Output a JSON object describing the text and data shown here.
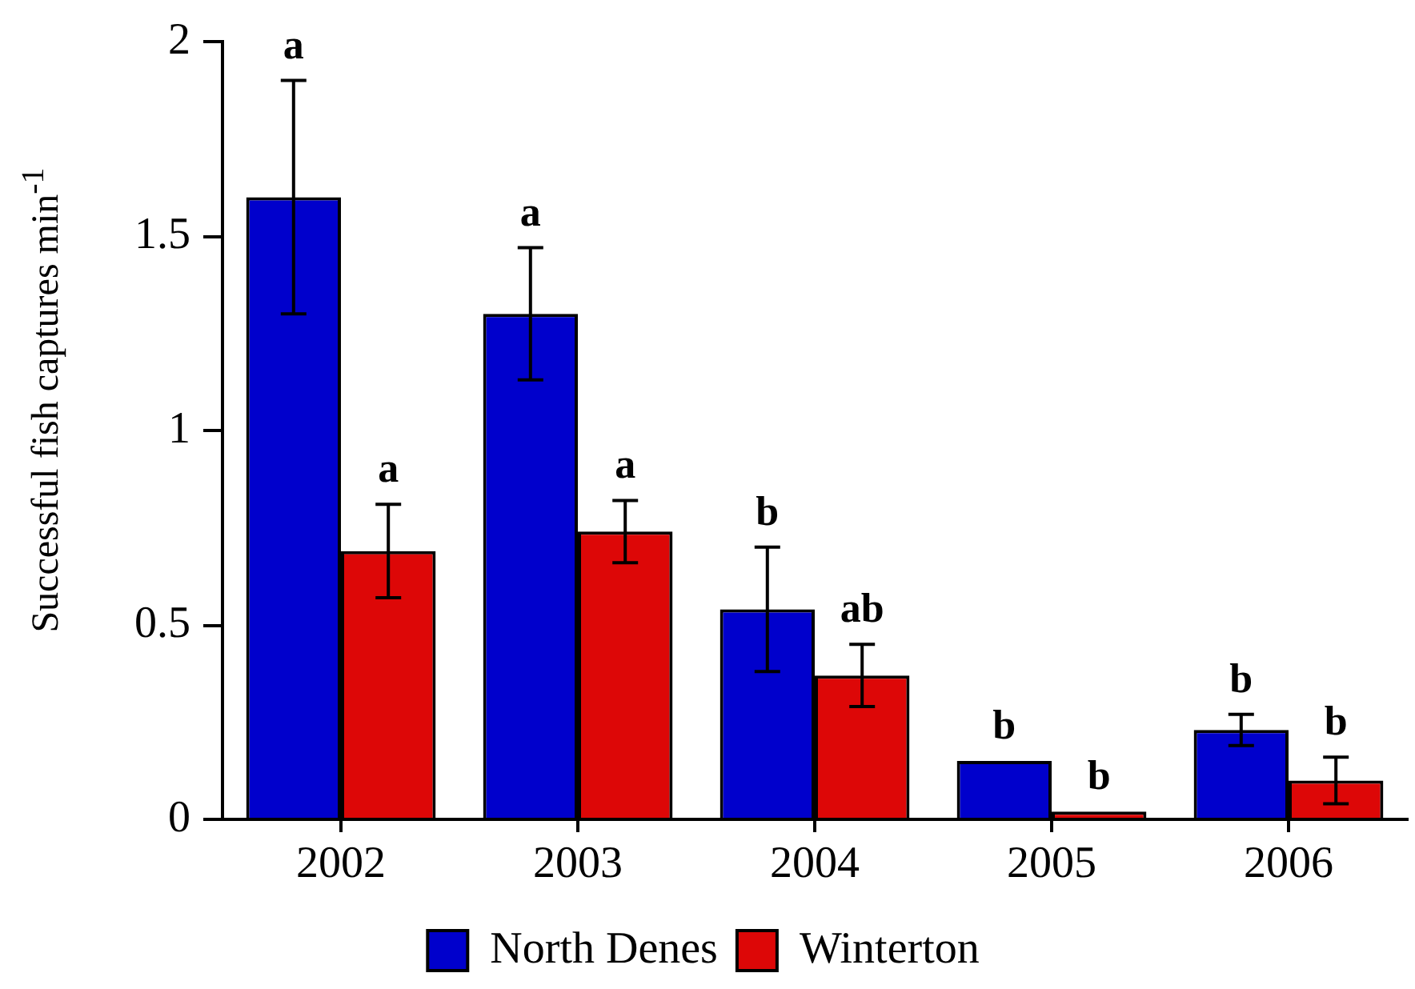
{
  "chart_data": {
    "type": "bar",
    "categories": [
      "2002",
      "2003",
      "2004",
      "2005",
      "2006"
    ],
    "series": [
      {
        "name": "North Denes",
        "color": "#0000cc",
        "values": [
          1.6,
          1.3,
          0.54,
          0.15,
          0.23
        ],
        "errors": [
          0.3,
          0.17,
          0.16,
          null,
          0.04
        ],
        "value_labels": [
          "a",
          "a",
          "b",
          "b",
          "b"
        ]
      },
      {
        "name": "Winterton",
        "color": "#dd0707",
        "values": [
          0.69,
          0.74,
          0.37,
          0.02,
          0.1
        ],
        "errors": [
          0.12,
          0.08,
          0.08,
          null,
          0.06
        ],
        "value_labels": [
          "a",
          "a",
          "ab",
          "b",
          "b"
        ]
      }
    ],
    "ylabel": "Successful fish captures min$^{-1}$",
    "ylim": [
      0,
      2
    ],
    "yticks": [
      0,
      0.5,
      1,
      1.5,
      2
    ],
    "grid": false,
    "legend": "bottom"
  }
}
